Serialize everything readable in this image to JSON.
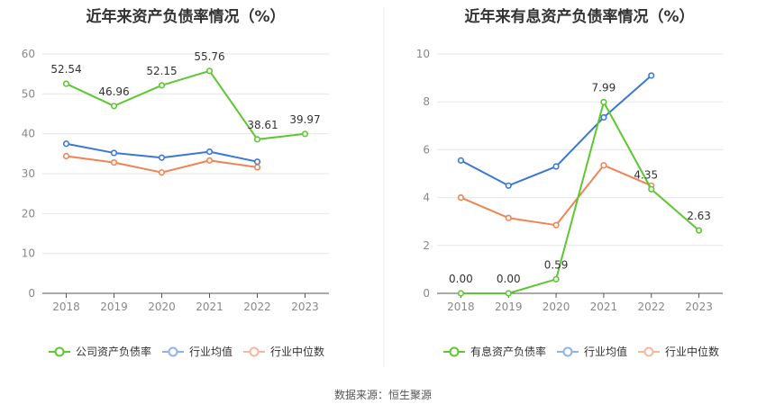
{
  "source_label": "数据来源：恒生聚源",
  "chart_data": [
    {
      "type": "line",
      "title": "近年来资产负债率情况（%）",
      "categories": [
        "2018",
        "2019",
        "2020",
        "2021",
        "2022",
        "2023"
      ],
      "ylim": [
        0,
        60
      ],
      "yticks": [
        "0",
        "10",
        "20",
        "30",
        "40",
        "50",
        "60"
      ],
      "ytick_values": [
        0,
        10,
        20,
        30,
        40,
        50,
        60
      ],
      "grid": true,
      "legend_position": "bottom",
      "series": [
        {
          "name": "公司资产负债率",
          "color": "#5cc72f",
          "values": [
            52.54,
            46.96,
            52.15,
            55.76,
            38.61,
            39.97
          ],
          "labels": [
            "52.54",
            "46.96",
            "52.15",
            "55.76",
            "38.61",
            "39.97"
          ],
          "legend_color": "#5cc72f"
        },
        {
          "name": "行业均值",
          "color": "#3a77d6",
          "values": [
            37.5,
            35.2,
            34.0,
            35.5,
            33.0,
            null
          ],
          "legend_color": "#8fb3ea"
        },
        {
          "name": "行业中位数",
          "color": "#f08354",
          "values": [
            34.4,
            32.8,
            30.3,
            33.3,
            31.6,
            null
          ],
          "legend_color": "#f6b79c"
        }
      ]
    },
    {
      "type": "line",
      "title": "近年来有息资产负债率情况（%）",
      "categories": [
        "2018",
        "2019",
        "2020",
        "2021",
        "2022",
        "2023"
      ],
      "ylim": [
        0,
        10
      ],
      "yticks": [
        "0",
        "2",
        "4",
        "6",
        "8",
        "10"
      ],
      "ytick_values": [
        0,
        2,
        4,
        6,
        8,
        10
      ],
      "grid": true,
      "legend_position": "bottom",
      "series": [
        {
          "name": "有息资产负债率",
          "color": "#5cc72f",
          "values": [
            0.0,
            0.0,
            0.59,
            7.99,
            4.35,
            2.63
          ],
          "labels": [
            "0.00",
            "0.00",
            "0.59",
            "7.99",
            "4.35",
            "2.63"
          ],
          "legend_color": "#5cc72f"
        },
        {
          "name": "行业均值",
          "color": "#3a77d6",
          "values": [
            5.55,
            4.5,
            5.3,
            7.35,
            9.1,
            null
          ],
          "legend_color": "#8fb3ea"
        },
        {
          "name": "行业中位数",
          "color": "#f08354",
          "values": [
            4.0,
            3.15,
            2.85,
            5.35,
            4.5,
            null
          ],
          "legend_color": "#f6b79c"
        }
      ]
    }
  ]
}
